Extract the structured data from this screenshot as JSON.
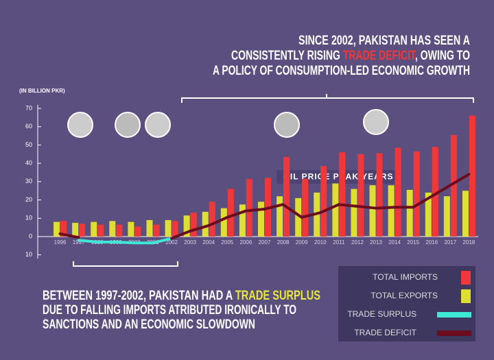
{
  "chart_data": {
    "type": "bar",
    "title": [
      "SINCE 2002, PAKISTAN HAS SEEN A",
      "CONSISTENTLY RISING ",
      "TRADE DEFICIT",
      ", OWING TO",
      "A POLICY OF CONSUMPTION-LED ECONOMIC GROWTH"
    ],
    "note": [
      "BETWEEN 1997-2002, PAKISTAN HAD A ",
      "TRADE SURPLUS",
      "DUE TO FALLING IMPORTS ATRIBUTED IRONICALLY TO",
      "SANCTIONS AND AN ECONOMIC SLOWDOWN"
    ],
    "annotation": "OIL PRICE PEAK YEARS",
    "y_label": "(IN BILLION PKR)",
    "categories": [
      "1996",
      "1997",
      "1998",
      "1999",
      "2000",
      "2001",
      "2002",
      "2003",
      "2004",
      "2005",
      "2006",
      "2007",
      "2008",
      "2009",
      "2010",
      "2011",
      "2012",
      "2013",
      "2014",
      "2015",
      "2016",
      "2017",
      "2018"
    ],
    "series": [
      {
        "name": "TOTAL IMPORTS",
        "color": "#f0383b",
        "kind": "bar",
        "values": [
          8.6,
          7,
          6.5,
          6.5,
          5.5,
          6.5,
          8.5,
          13,
          19,
          26,
          31.5,
          32,
          43.5,
          31.5,
          38.5,
          46,
          45,
          45.5,
          48.5,
          46.5,
          49,
          55.5,
          66
        ]
      },
      {
        "name": "TOTAL EXPORTS",
        "color": "#dede33",
        "kind": "bar",
        "values": [
          8,
          7.5,
          8,
          8.5,
          8,
          9,
          9,
          11.5,
          13.5,
          15.5,
          17.5,
          19,
          22,
          21,
          24,
          29,
          26,
          28,
          28,
          25.5,
          24,
          22,
          25
        ]
      },
      {
        "name": "TRADE SURPLUS",
        "color": "#3ee8d6",
        "kind": "line",
        "values": [
          null,
          -2,
          -3,
          -3,
          -3.5,
          -3.5,
          -1,
          null,
          null,
          null,
          null,
          null,
          null,
          null,
          null,
          null,
          null,
          null,
          null,
          null,
          null,
          null,
          null
        ]
      },
      {
        "name": "TRADE DEFICIT",
        "color": "#6b0c1f",
        "kind": "line",
        "values": [
          1.5,
          -0.5,
          null,
          null,
          null,
          null,
          -1,
          3,
          6,
          10.5,
          14,
          15,
          17.5,
          10.5,
          13,
          17.5,
          16.5,
          15.5,
          16,
          16,
          22,
          28,
          34
        ]
      }
    ],
    "ylim": [
      -12,
      72
    ],
    "yticks": [
      70,
      60,
      50,
      40,
      30,
      20,
      10,
      0,
      {
        "value": -10,
        "label": "10"
      }
    ]
  }
}
